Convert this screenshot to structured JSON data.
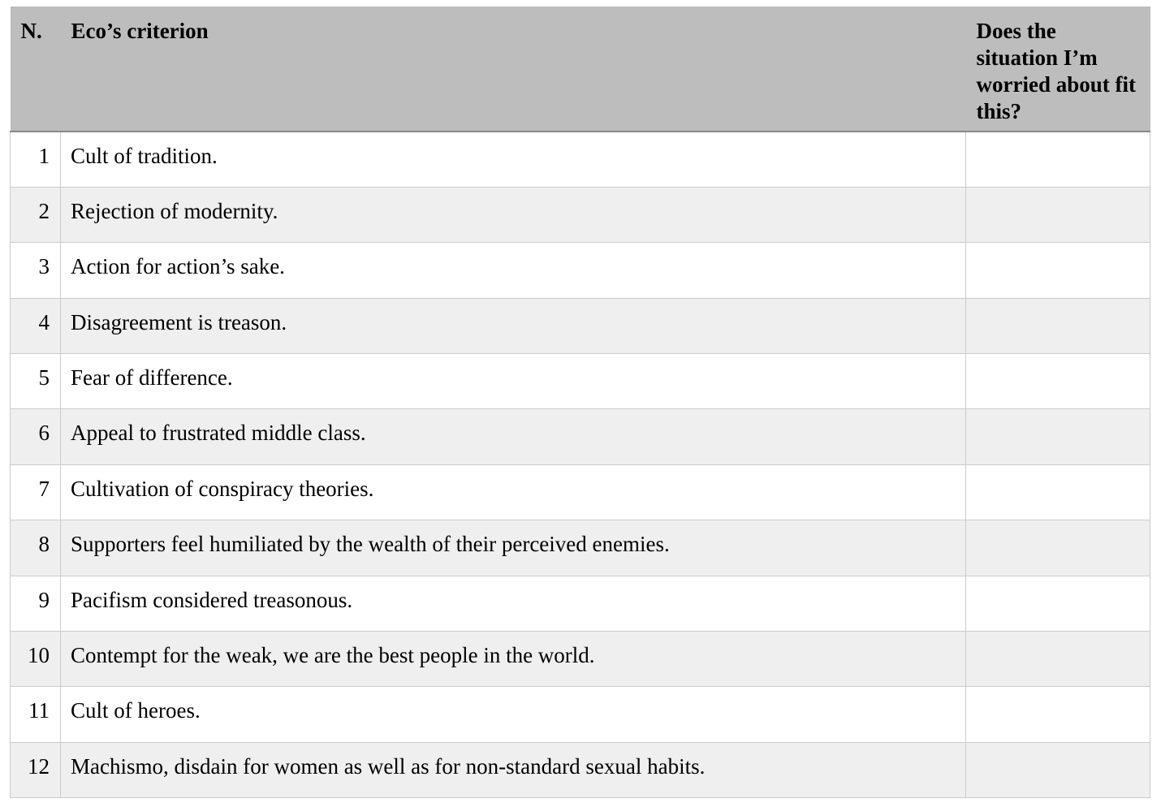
{
  "colors": {
    "header_bg": "#bdbdbd",
    "header_rule": "#898989",
    "row_alt_bg": "#efefef",
    "grid_line": "#cbcbcb"
  },
  "table": {
    "columns": [
      {
        "label": "N."
      },
      {
        "label": "Eco’s criterion"
      },
      {
        "label": "Does the situation I’m worried about fit this?"
      }
    ],
    "rows": [
      {
        "n": "1",
        "criterion": "Cult of tradition.",
        "fit": ""
      },
      {
        "n": "2",
        "criterion": "Rejection of modernity.",
        "fit": ""
      },
      {
        "n": "3",
        "criterion": "Action for action’s sake.",
        "fit": ""
      },
      {
        "n": "4",
        "criterion": "Disagreement is treason.",
        "fit": ""
      },
      {
        "n": "5",
        "criterion": "Fear of difference.",
        "fit": ""
      },
      {
        "n": "6",
        "criterion": "Appeal to frustrated middle class.",
        "fit": ""
      },
      {
        "n": "7",
        "criterion": "Cultivation of conspiracy theories.",
        "fit": ""
      },
      {
        "n": "8",
        "criterion": "Supporters feel humiliated by the wealth of their perceived enemies.",
        "fit": ""
      },
      {
        "n": "9",
        "criterion": "Pacifism considered treasonous.",
        "fit": ""
      },
      {
        "n": "10",
        "criterion": "Contempt for the weak, we are the best people in the world.",
        "fit": ""
      },
      {
        "n": "11",
        "criterion": "Cult of heroes.",
        "fit": ""
      },
      {
        "n": "12",
        "criterion": "Machismo, disdain for women as well as for non-standard sexual habits.",
        "fit": ""
      }
    ]
  }
}
